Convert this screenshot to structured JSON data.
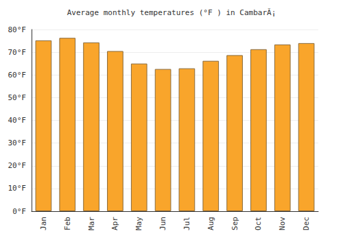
{
  "chart_data": {
    "type": "bar",
    "title": "Average monthly temperatures (°F ) in CambarÃ¡",
    "categories": [
      "Jan",
      "Feb",
      "Mar",
      "Apr",
      "May",
      "Jun",
      "Jul",
      "Aug",
      "Sep",
      "Oct",
      "Nov",
      "Dec"
    ],
    "values": [
      75.2,
      76.3,
      74.3,
      70.5,
      65.0,
      62.6,
      62.9,
      66.2,
      68.7,
      71.3,
      73.4,
      74.0
    ],
    "color": "#f9a52b",
    "ylim": [
      0,
      80
    ],
    "yticks": [
      {
        "value": 0,
        "label": "0°F"
      },
      {
        "value": 10,
        "label": "10°F"
      },
      {
        "value": 20,
        "label": "20°F"
      },
      {
        "value": 30,
        "label": "30°F"
      },
      {
        "value": 40,
        "label": "40°F"
      },
      {
        "value": 50,
        "label": "50°F"
      },
      {
        "value": 60,
        "label": "60°F"
      },
      {
        "value": 70,
        "label": "70°F"
      },
      {
        "value": 80,
        "label": "80°F"
      }
    ],
    "grid": true
  }
}
